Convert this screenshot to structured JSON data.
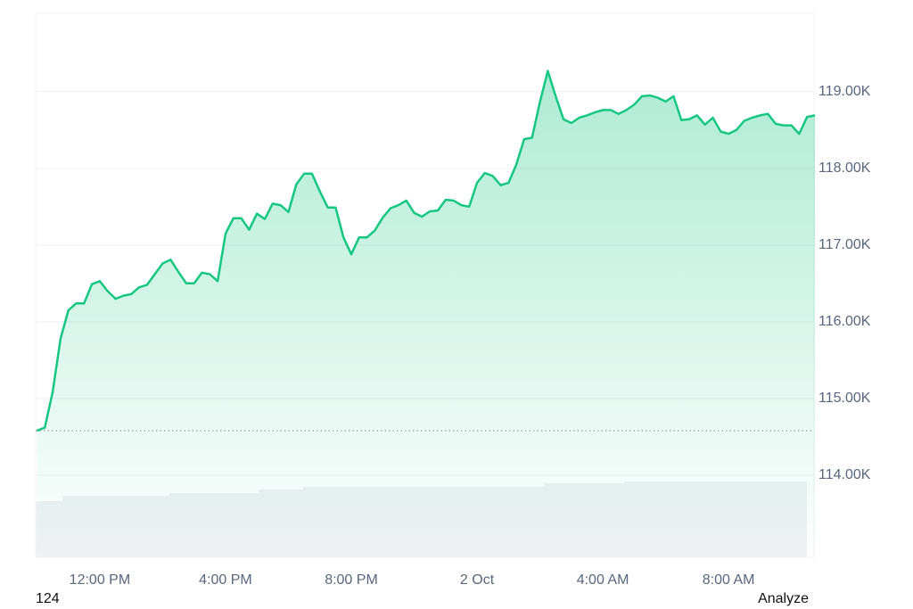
{
  "chart_data": {
    "type": "line",
    "x": [
      10,
      10.25,
      10.5,
      10.75,
      11,
      11.25,
      11.5,
      11.75,
      12,
      12.25,
      12.5,
      12.75,
      13,
      13.25,
      13.5,
      13.75,
      14,
      14.25,
      14.5,
      14.75,
      15,
      15.25,
      15.5,
      15.75,
      16,
      16.25,
      16.5,
      16.75,
      17,
      17.25,
      17.5,
      17.75,
      18,
      18.25,
      18.5,
      18.75,
      19,
      19.25,
      19.5,
      19.75,
      20,
      20.25,
      20.5,
      20.75,
      21,
      21.25,
      21.5,
      21.75,
      22,
      22.25,
      22.5,
      22.75,
      23,
      23.25,
      23.5,
      23.75,
      24,
      24.25,
      24.5,
      24.75,
      25,
      25.25,
      25.5,
      25.75,
      26,
      26.25,
      26.5,
      26.75,
      27,
      27.25,
      27.5,
      27.75,
      28,
      28.25,
      28.5,
      28.75,
      29,
      29.25,
      29.5,
      29.75,
      30,
      30.25,
      30.5,
      30.75,
      31,
      31.25,
      31.5,
      31.75,
      32,
      32.25,
      32.5,
      32.75,
      33,
      33.25,
      33.5,
      33.75,
      34,
      34.25,
      34.5,
      34.75
    ],
    "series": [
      {
        "color": "#16c784",
        "values": [
          114580,
          114620,
          115080,
          115780,
          116150,
          116240,
          116240,
          116490,
          116530,
          116400,
          116300,
          116340,
          116360,
          116450,
          116480,
          116620,
          116760,
          116810,
          116650,
          116500,
          116500,
          116640,
          116620,
          116530,
          117150,
          117350,
          117350,
          117200,
          117410,
          117340,
          117540,
          117520,
          117430,
          117790,
          117930,
          117930,
          117700,
          117490,
          117490,
          117100,
          116880,
          117100,
          117100,
          117190,
          117360,
          117480,
          117520,
          117580,
          117420,
          117370,
          117440,
          117450,
          117590,
          117580,
          117520,
          117500,
          117810,
          117940,
          117900,
          117780,
          117810,
          118050,
          118380,
          118400,
          118860,
          119270,
          118940,
          118640,
          118590,
          118660,
          118690,
          118730,
          118760,
          118760,
          118710,
          118760,
          118830,
          118940,
          118950,
          118920,
          118870,
          118940,
          118630,
          118640,
          118690,
          118570,
          118660,
          118480,
          118450,
          118500,
          118620,
          118660,
          118690,
          118710,
          118580,
          118560,
          118560,
          118450,
          118670,
          118690
        ]
      }
    ],
    "baseline": 114580,
    "xlim": [
      9.96,
      34.72
    ],
    "xticks": [
      {
        "value": 12,
        "label": "12:00 PM"
      },
      {
        "value": 16,
        "label": "4:00 PM"
      },
      {
        "value": 20,
        "label": "8:00 PM"
      },
      {
        "value": 24,
        "label": "2 Oct"
      },
      {
        "value": 28,
        "label": "4:00 AM"
      },
      {
        "value": 32,
        "label": "8:00 AM"
      }
    ],
    "ylim": [
      112930,
      120020
    ],
    "yticks": [
      {
        "value": 114000,
        "label": "114.00K"
      },
      {
        "value": 115000,
        "label": "115.00K"
      },
      {
        "value": 116000,
        "label": "116.00K"
      },
      {
        "value": 117000,
        "label": "117.00K"
      },
      {
        "value": 118000,
        "label": "118.00K"
      },
      {
        "value": 119000,
        "label": "119.00K"
      }
    ],
    "grid": true,
    "footer_left": "124",
    "footer_right": "Analyze"
  }
}
